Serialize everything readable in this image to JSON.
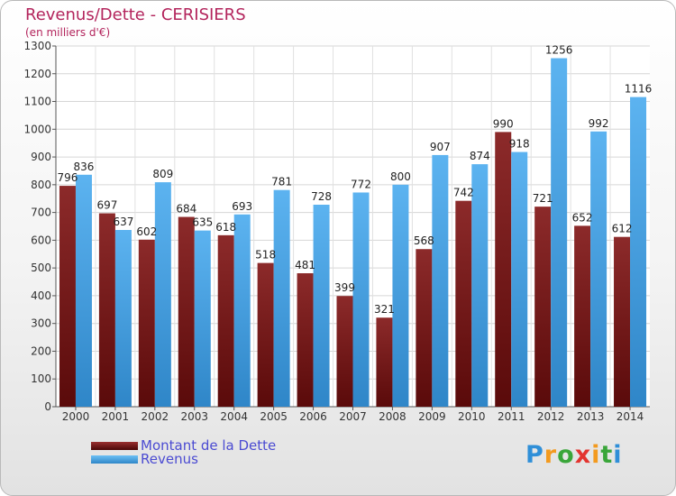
{
  "chart_data": {
    "type": "bar",
    "title": "Revenus/Dette - CERISIERS",
    "subtitle": "(en milliers d'€)",
    "categories": [
      "2000",
      "2001",
      "2002",
      "2003",
      "2004",
      "2005",
      "2006",
      "2007",
      "2008",
      "2009",
      "2010",
      "2011",
      "2012",
      "2013",
      "2014"
    ],
    "series": [
      {
        "name": "Montant de la Dette",
        "values": [
          796,
          697,
          602,
          684,
          618,
          518,
          481,
          399,
          321,
          568,
          742,
          990,
          721,
          652,
          612
        ],
        "color": "#7a1e1e"
      },
      {
        "name": "Revenus",
        "values": [
          836,
          637,
          809,
          635,
          693,
          781,
          728,
          772,
          800,
          907,
          874,
          918,
          1256,
          992,
          1116
        ],
        "color": "#4ea6e6"
      }
    ],
    "yticks": [
      0,
      100,
      200,
      300,
      400,
      500,
      600,
      700,
      800,
      900,
      1000,
      1100,
      1200,
      1300
    ],
    "ylim": [
      0,
      1300
    ],
    "grid": true,
    "legend_position": "bottom-left"
  },
  "logo": {
    "letters": [
      "P",
      "r",
      "o",
      "x",
      "i",
      "t",
      "i"
    ],
    "colors": [
      "#2f8fd8",
      "#f39a1e",
      "#3aa63a",
      "#e3342f",
      "#f39a1e",
      "#3aa63a",
      "#2f8fd8"
    ]
  }
}
